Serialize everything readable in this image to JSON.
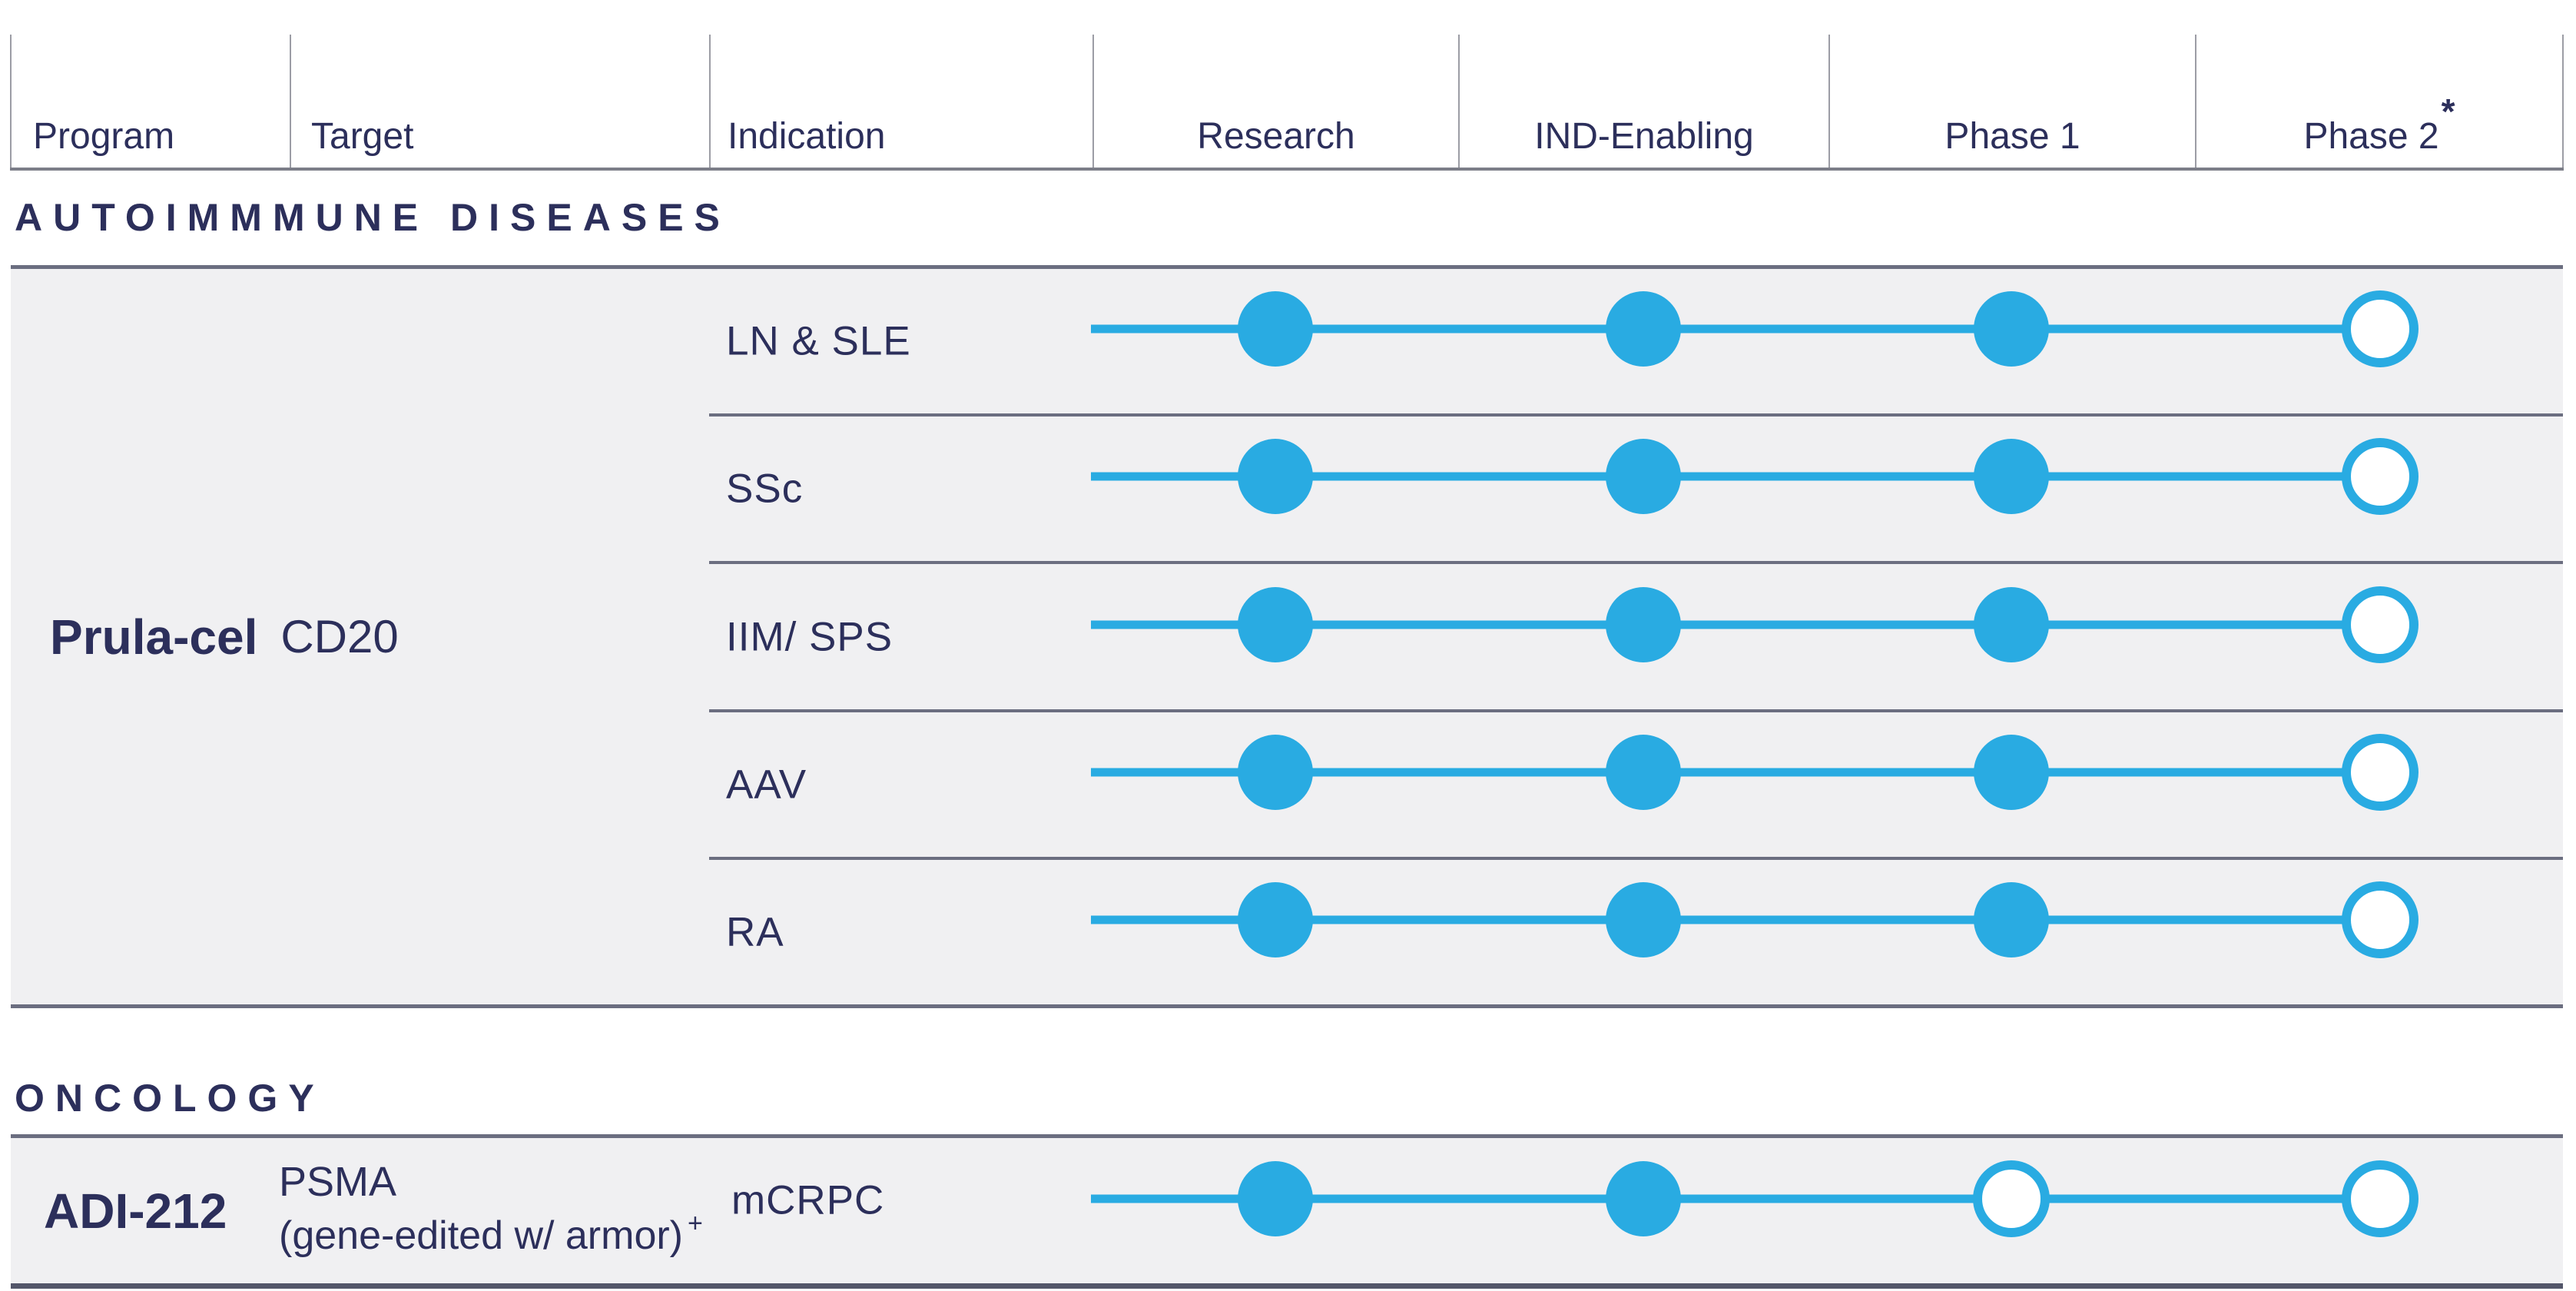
{
  "header": {
    "columns": [
      {
        "label": "Program"
      },
      {
        "label": "Target"
      },
      {
        "label": "Indication"
      },
      {
        "label": "Research"
      },
      {
        "label": "IND-Enabling"
      },
      {
        "label": "Phase 1"
      },
      {
        "label": "Phase 2",
        "superscript": "*"
      }
    ]
  },
  "phases": [
    "Research",
    "IND-Enabling",
    "Phase 1",
    "Phase 2"
  ],
  "sections": [
    {
      "title": "AUTOIMMMUNE DISEASES",
      "programs": [
        {
          "name": "Prula-cel",
          "target": "CD20",
          "rows": [
            {
              "indication": "LN & SLE",
              "phase_status": [
                "filled",
                "filled",
                "filled",
                "open"
              ]
            },
            {
              "indication": "SSc",
              "phase_status": [
                "filled",
                "filled",
                "filled",
                "open"
              ]
            },
            {
              "indication": "IIM/ SPS",
              "phase_status": [
                "filled",
                "filled",
                "filled",
                "open"
              ]
            },
            {
              "indication": "AAV",
              "phase_status": [
                "filled",
                "filled",
                "filled",
                "open"
              ]
            },
            {
              "indication": "RA",
              "phase_status": [
                "filled",
                "filled",
                "filled",
                "open"
              ]
            }
          ]
        }
      ]
    },
    {
      "title": "ONCOLOGY",
      "programs": [
        {
          "name": "ADI-212",
          "target": "PSMA",
          "target_note": "(gene-edited w/ armor)",
          "target_note_superscript": "+",
          "rows": [
            {
              "indication": "mCRPC",
              "phase_status": [
                "filled",
                "filled",
                "open",
                "open"
              ]
            }
          ]
        }
      ]
    }
  ],
  "colors": {
    "accent_cyan": "#29abe2",
    "navy_text": "#2c2f5b",
    "band_gray": "#f0f0f2",
    "divider_slate": "#6b6e80",
    "header_separator": "#9c9da5",
    "header_bottom_rule": "#7c7e88"
  },
  "chart_data": {
    "type": "table",
    "columns": [
      "Program",
      "Target",
      "Indication",
      "Research",
      "IND-Enabling",
      "Phase 1",
      "Phase 2*"
    ],
    "rows": [
      {
        "program": "Prula-cel",
        "target": "CD20",
        "indication": "LN & SLE",
        "research": "filled",
        "ind_enabling": "filled",
        "phase_1": "filled",
        "phase_2": "open"
      },
      {
        "program": "Prula-cel",
        "target": "CD20",
        "indication": "SSc",
        "research": "filled",
        "ind_enabling": "filled",
        "phase_1": "filled",
        "phase_2": "open"
      },
      {
        "program": "Prula-cel",
        "target": "CD20",
        "indication": "IIM/ SPS",
        "research": "filled",
        "ind_enabling": "filled",
        "phase_1": "filled",
        "phase_2": "open"
      },
      {
        "program": "Prula-cel",
        "target": "CD20",
        "indication": "AAV",
        "research": "filled",
        "ind_enabling": "filled",
        "phase_1": "filled",
        "phase_2": "open"
      },
      {
        "program": "Prula-cel",
        "target": "CD20",
        "indication": "RA",
        "research": "filled",
        "ind_enabling": "filled",
        "phase_1": "filled",
        "phase_2": "open"
      },
      {
        "program": "ADI-212",
        "target": "PSMA (gene-edited w/ armor)+",
        "indication": "mCRPC",
        "research": "filled",
        "ind_enabling": "filled",
        "phase_1": "open",
        "phase_2": "open"
      }
    ],
    "section_groups": [
      "AUTOIMMMUNE DISEASES",
      "ONCOLOGY"
    ]
  }
}
